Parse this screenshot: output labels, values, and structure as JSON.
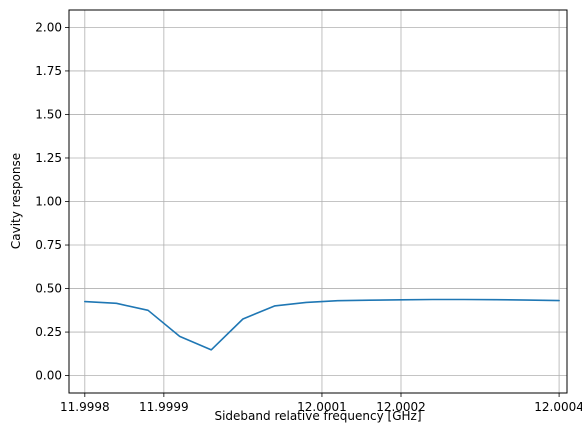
{
  "chart_data": {
    "type": "line",
    "title": "",
    "xlabel": "Sideband relative frequency [GHz]",
    "ylabel": "Cavity response",
    "xlim": [
      11.99978,
      12.00041
    ],
    "ylim": [
      -0.1,
      2.1
    ],
    "grid": true,
    "x_ticks": [
      11.9998,
      11.9999,
      12.0001,
      12.0002,
      12.0004
    ],
    "x_tick_labels": [
      "11.9998",
      "11.9999",
      "12.0001",
      "12.0002",
      "12.0004"
    ],
    "y_ticks": [
      0.0,
      0.25,
      0.5,
      0.75,
      1.0,
      1.25,
      1.5,
      1.75,
      2.0
    ],
    "y_tick_labels": [
      "0.00",
      "0.25",
      "0.50",
      "0.75",
      "1.00",
      "1.25",
      "1.50",
      "1.75",
      "2.00"
    ],
    "series": [
      {
        "color": "#1f77b4",
        "x": [
          11.9998,
          11.99984,
          11.99988,
          11.99992,
          11.99996,
          12.0,
          12.00004,
          12.00008,
          12.00012,
          12.00016,
          12.0002,
          12.00024,
          12.00028,
          12.00032,
          12.00036,
          12.0004
        ],
        "y": [
          0.425,
          0.415,
          0.375,
          0.225,
          0.148,
          0.325,
          0.4,
          0.42,
          0.43,
          0.433,
          0.435,
          0.437,
          0.437,
          0.436,
          0.434,
          0.431
        ]
      }
    ]
  }
}
